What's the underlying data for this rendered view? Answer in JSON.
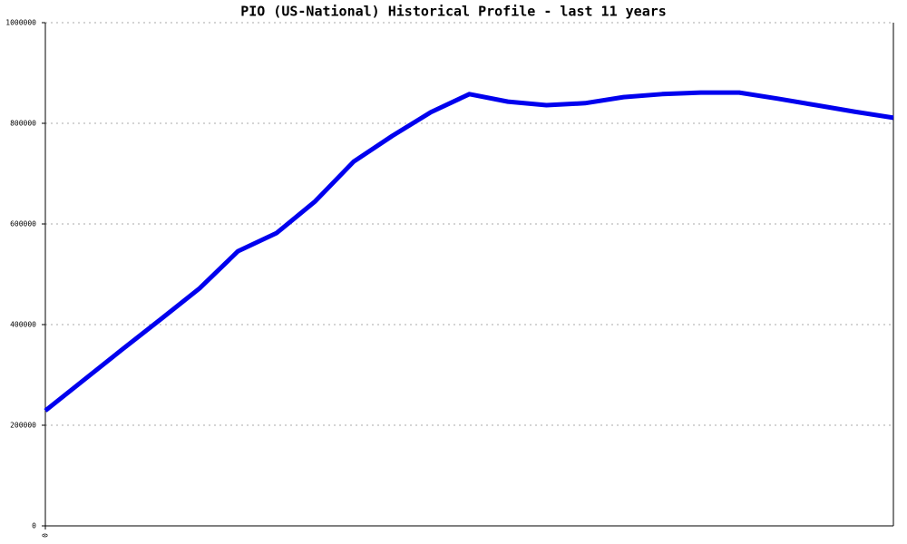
{
  "chart_data": {
    "type": "line",
    "title": "PIO (US-National) Historical Profile - last 11 years",
    "categories": [
      "0",
      null,
      null,
      null,
      null,
      null,
      null,
      null,
      null,
      null,
      null,
      null,
      null,
      null,
      null,
      null,
      null,
      null,
      null,
      null,
      null,
      null,
      null
    ],
    "values": [
      229000,
      290000,
      351000,
      411000,
      472000,
      546000,
      582000,
      645000,
      724000,
      775000,
      822000,
      858000,
      843000,
      836000,
      840000,
      852000,
      858000,
      861000,
      861000,
      849000,
      836000,
      823000,
      811000
    ],
    "color": "#0000ee",
    "ylim": [
      0,
      1000000
    ],
    "yticks": [
      0,
      200000,
      400000,
      600000,
      800000,
      1000000
    ],
    "grid": true
  }
}
